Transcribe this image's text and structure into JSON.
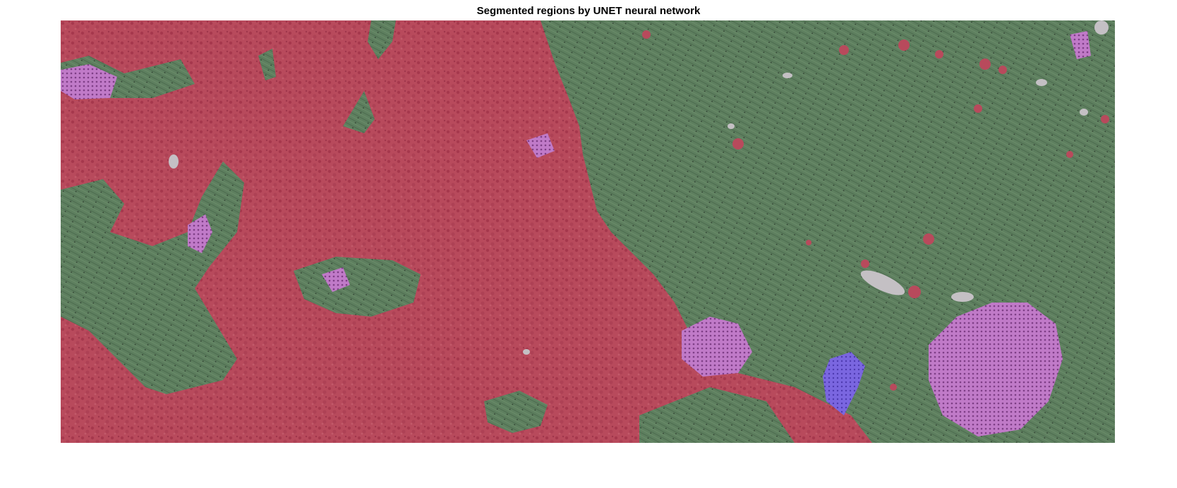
{
  "figure": {
    "title": "Segmented regions by UNET neural network"
  },
  "image": {
    "content": "segmentation-overlay",
    "colors": {
      "tumor": "#b84a5c",
      "stroma": "#5e7f5f",
      "lymphocytes": "#c07ac8",
      "necrosis": "#7a66e0",
      "background": "#c4c0c4"
    }
  }
}
